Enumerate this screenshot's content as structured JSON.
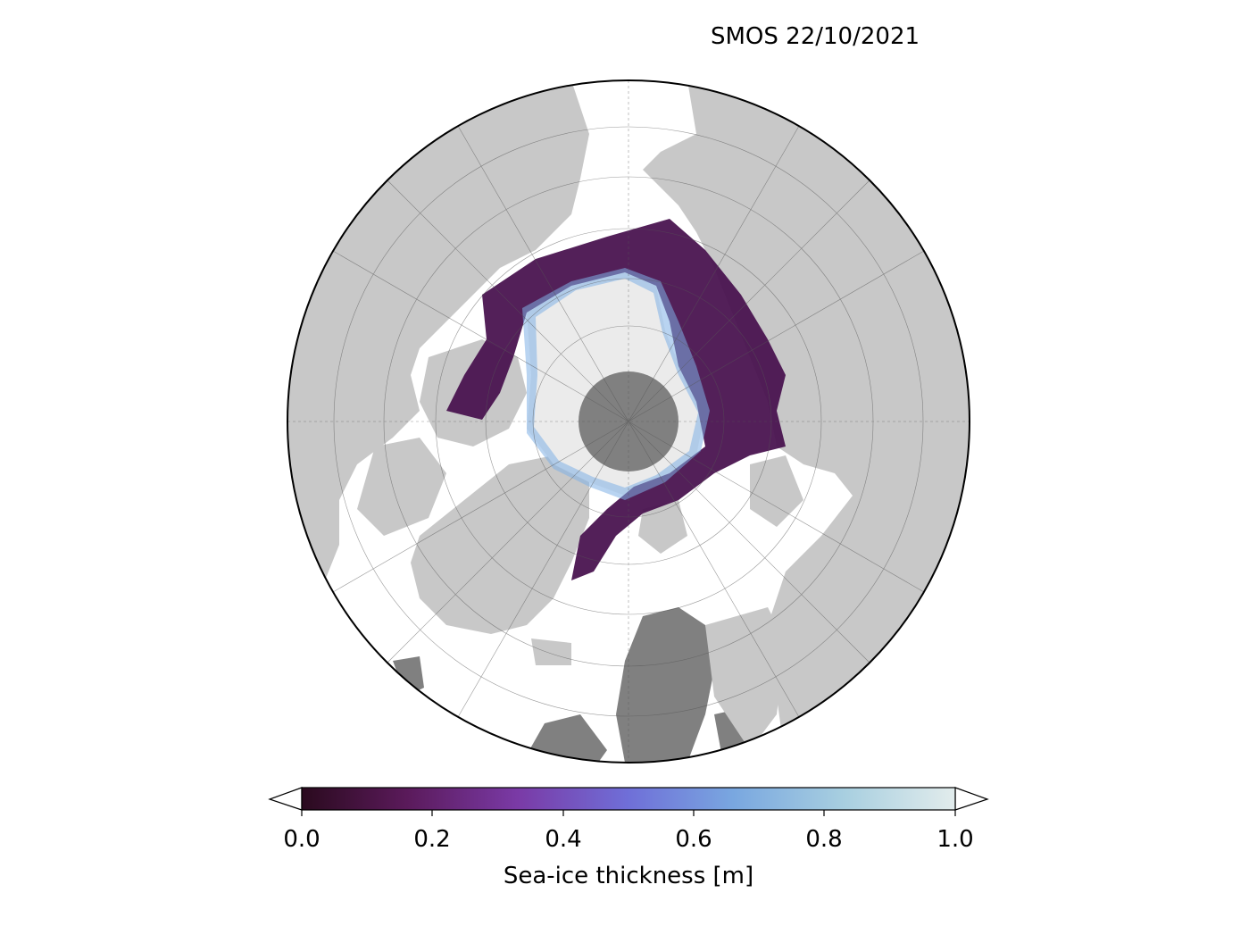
{
  "title": "SMOS 22/10/2021",
  "colorbar": {
    "label": "Sea-ice thickness [m]",
    "ticks": [
      "0.0",
      "0.2",
      "0.4",
      "0.6",
      "0.8",
      "1.0"
    ],
    "min": 0.0,
    "max": 1.0,
    "extend": "both",
    "colormap": [
      "#2a0a1e",
      "#5a1a5a",
      "#7a3aa6",
      "#6f6fd8",
      "#79a7e0",
      "#a8cfe0",
      "#e2ecec"
    ]
  },
  "map": {
    "projection": "north-polar-stereographic",
    "ocean_color": "#ffffff",
    "land_color": "#c8c8c8",
    "no_data_land_color": "#808080",
    "thick_ice_color": "#ebebeb",
    "pole_hole_color": "#808080"
  }
}
